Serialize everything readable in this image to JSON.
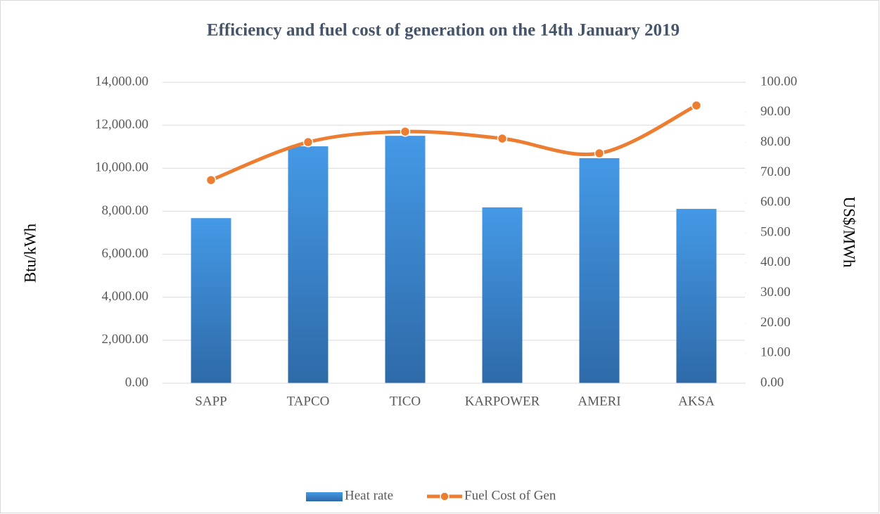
{
  "chart_data": {
    "type": "bar",
    "title": "Efficiency and fuel cost of  generation on the 14th January 2019",
    "y_label": "Btu/kWh",
    "y2_label": "US$/MWh",
    "categories": [
      "SAPP",
      "TAPCO",
      "TICO",
      "KARPOWER",
      "AMERI",
      "AKSA"
    ],
    "series": [
      {
        "name": "Heat rate",
        "type": "bar",
        "color": "#3b86d4",
        "values": [
          7680,
          11020,
          11510,
          8180,
          10470,
          8110
        ]
      },
      {
        "name": "Fuel Cost of Gen",
        "type": "line",
        "axis": "y2",
        "color": "#ed7d31",
        "values": [
          67.5,
          80.1,
          83.6,
          81.3,
          76.4,
          92.3
        ]
      }
    ],
    "ylim": [
      0,
      14000
    ],
    "yticks": [
      {
        "value": 0,
        "label": "0.00"
      },
      {
        "value": 2000,
        "label": "2,000.00"
      },
      {
        "value": 4000,
        "label": "4,000.00"
      },
      {
        "value": 6000,
        "label": "6,000.00"
      },
      {
        "value": 8000,
        "label": "8,000.00"
      },
      {
        "value": 10000,
        "label": "10,000.00"
      },
      {
        "value": 12000,
        "label": "12,000.00"
      },
      {
        "value": 14000,
        "label": "14,000.00"
      }
    ],
    "y2lim": [
      0,
      100
    ],
    "y2ticks": [
      {
        "value": 0,
        "label": "0.00"
      },
      {
        "value": 10,
        "label": "10.00"
      },
      {
        "value": 20,
        "label": "20.00"
      },
      {
        "value": 30,
        "label": "30.00"
      },
      {
        "value": 40,
        "label": "40.00"
      },
      {
        "value": 50,
        "label": "50.00"
      },
      {
        "value": 60,
        "label": "60.00"
      },
      {
        "value": 70,
        "label": "70.00"
      },
      {
        "value": 80,
        "label": "80.00"
      },
      {
        "value": 90,
        "label": "90.00"
      },
      {
        "value": 100,
        "label": "100.00"
      }
    ],
    "grid": true,
    "legend": "bottom"
  }
}
